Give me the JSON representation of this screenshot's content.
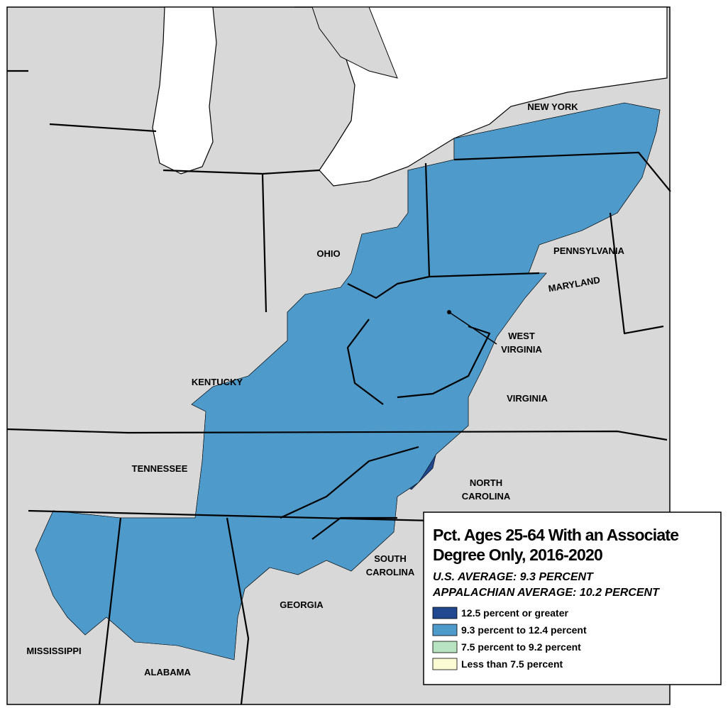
{
  "title_lines": [
    "Pct. Ages 25-64 With an Associate",
    "Degree Only, 2016-2020"
  ],
  "averages": [
    "U.S. AVERAGE: 9.3 PERCENT",
    "APPALACHIAN AVERAGE: 10.2 PERCENT"
  ],
  "legend": [
    {
      "label": "12.5 percent or greater",
      "color": "#21488f"
    },
    {
      "label": "9.3 percent to 12.4 percent",
      "color": "#4d9acb"
    },
    {
      "label": "7.5 percent to 9.2 percent",
      "color": "#b7e3c0"
    },
    {
      "label": "Less than 7.5 percent",
      "color": "#fcfcd4"
    }
  ],
  "states": {
    "new_york": "NEW YORK",
    "ohio": "OHIO",
    "pennsylvania": "PENNSYLVANIA",
    "maryland": "MARYLAND",
    "west_virginia": [
      "WEST",
      "VIRGINIA"
    ],
    "kentucky": "KENTUCKY",
    "virginia": "VIRGINIA",
    "tennessee": "TENNESSEE",
    "north_carolina": [
      "NORTH",
      "CAROLINA"
    ],
    "south_carolina": [
      "SOUTH",
      "CAROLINA"
    ],
    "georgia": "GEORGIA",
    "mississippi": "MISSISSIPPI",
    "alabama": "ALABAMA"
  }
}
